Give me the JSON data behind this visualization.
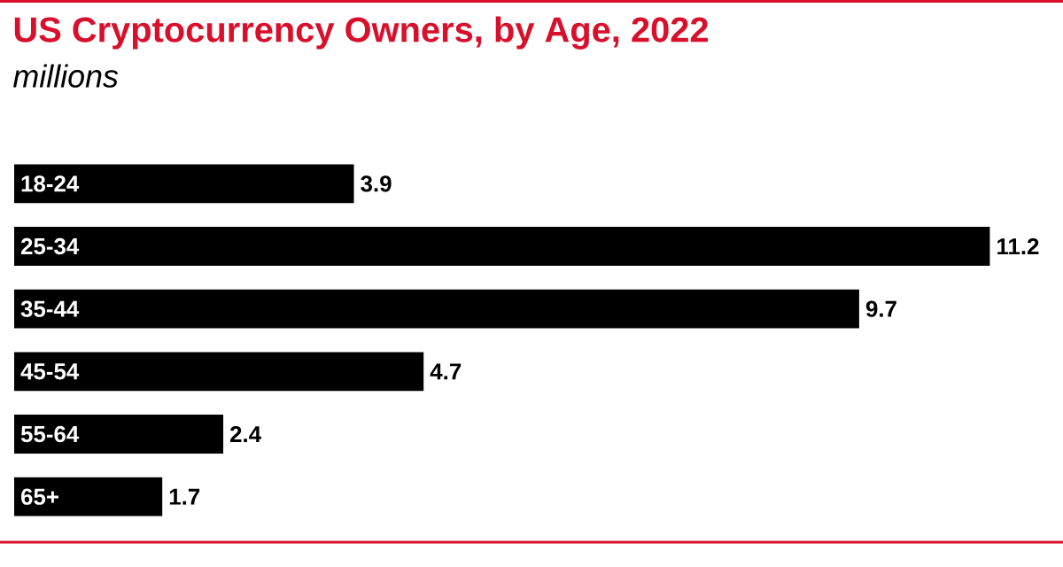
{
  "chart_data": {
    "type": "bar",
    "orientation": "horizontal",
    "title": "US Cryptocurrency Owners, by Age, 2022",
    "subtitle": "millions",
    "categories": [
      "18-24",
      "25-34",
      "35-44",
      "45-54",
      "55-64",
      "65+"
    ],
    "values": [
      3.9,
      11.2,
      9.7,
      4.7,
      2.4,
      1.7
    ],
    "color": "#000000",
    "data_labels": true
  }
}
